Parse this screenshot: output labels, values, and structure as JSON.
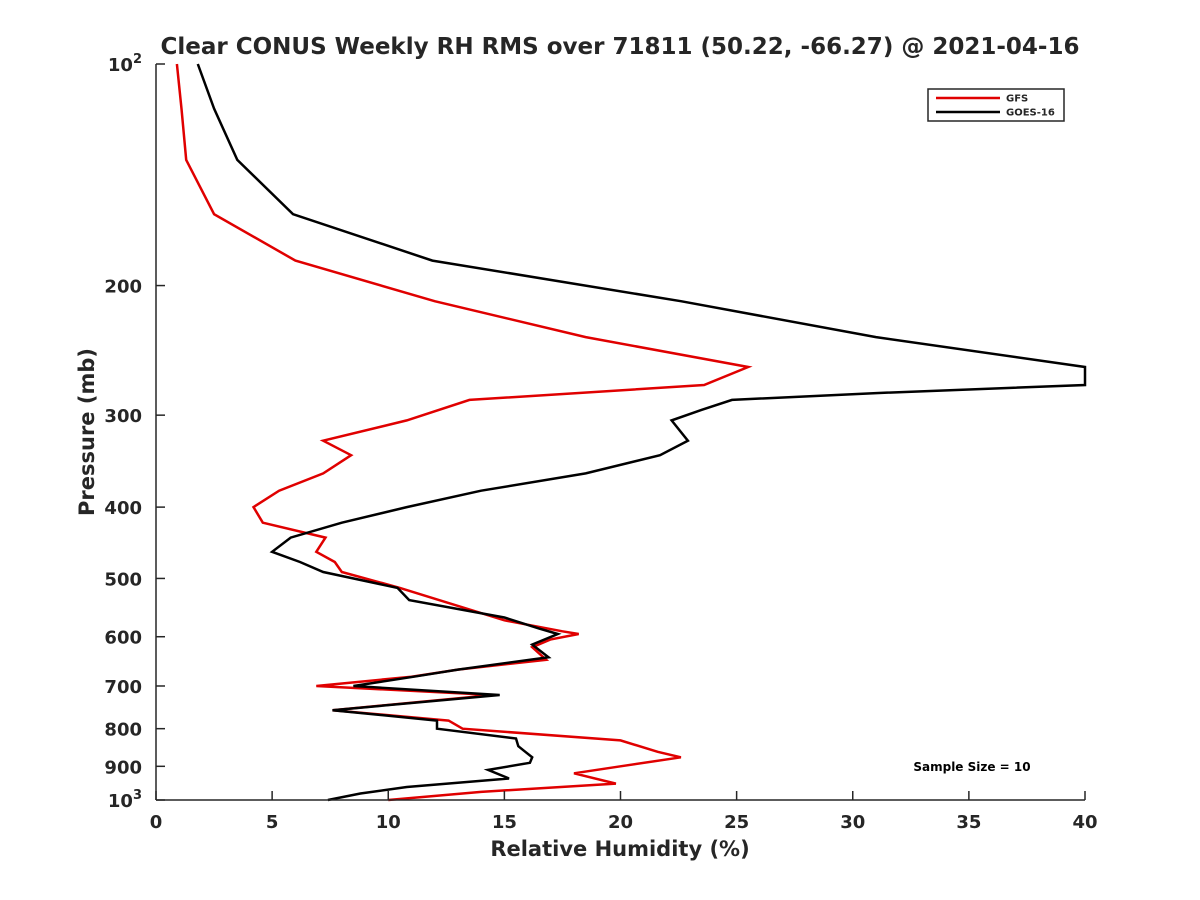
{
  "chart_data": {
    "type": "line",
    "title": "Clear CONUS Weekly RH RMS over 71811 (50.22, -66.27) @ 2021-04-16",
    "xlabel": "Relative Humidity (%)",
    "ylabel": "Pressure (mb)",
    "xlim": [
      0,
      40
    ],
    "ylim": [
      100,
      1000
    ],
    "yscale": "log",
    "y_reversed": true,
    "grid": false,
    "legend_position": "top-right",
    "x_ticks": [
      "0",
      "5",
      "10",
      "15",
      "20",
      "25",
      "30",
      "35",
      "40"
    ],
    "y_ticks": [
      {
        "value": 100,
        "base": "10",
        "exp": "2"
      },
      {
        "value": 200,
        "label": "200"
      },
      {
        "value": 300,
        "label": "300"
      },
      {
        "value": 400,
        "label": "400"
      },
      {
        "value": 500,
        "label": "500"
      },
      {
        "value": 600,
        "label": "600"
      },
      {
        "value": 700,
        "label": "700"
      },
      {
        "value": 800,
        "label": "800"
      },
      {
        "value": 900,
        "label": "900"
      },
      {
        "value": 1000,
        "base": "10",
        "exp": "3"
      }
    ],
    "annotation": "Sample Size = 10",
    "series": [
      {
        "name": "GFS",
        "color": "#e00000",
        "points": [
          [
            0.9,
            100
          ],
          [
            1.1,
            115
          ],
          [
            1.3,
            135
          ],
          [
            2.5,
            160
          ],
          [
            6.0,
            185
          ],
          [
            12.0,
            210
          ],
          [
            18.5,
            235
          ],
          [
            25.5,
            258
          ],
          [
            23.6,
            273
          ],
          [
            13.5,
            286
          ],
          [
            10.8,
            305
          ],
          [
            7.2,
            325
          ],
          [
            8.4,
            340
          ],
          [
            7.2,
            360
          ],
          [
            5.3,
            380
          ],
          [
            4.2,
            400
          ],
          [
            4.6,
            420
          ],
          [
            7.3,
            440
          ],
          [
            6.9,
            460
          ],
          [
            7.7,
            475
          ],
          [
            8.0,
            490
          ],
          [
            10.5,
            515
          ],
          [
            15.0,
            570
          ],
          [
            17.5,
            590
          ],
          [
            18.2,
            595
          ],
          [
            17.0,
            605
          ],
          [
            16.2,
            620
          ],
          [
            16.8,
            645
          ],
          [
            13.0,
            665
          ],
          [
            11.0,
            680
          ],
          [
            6.9,
            700
          ],
          [
            14.5,
            720
          ],
          [
            7.6,
            755
          ],
          [
            12.6,
            780
          ],
          [
            13.2,
            800
          ],
          [
            20.0,
            830
          ],
          [
            21.6,
            860
          ],
          [
            22.6,
            875
          ],
          [
            20.0,
            900
          ],
          [
            18.0,
            920
          ],
          [
            19.8,
            950
          ],
          [
            14.0,
            975
          ],
          [
            10.0,
            1000
          ]
        ]
      },
      {
        "name": "GOES-16",
        "color": "#000000",
        "points": [
          [
            1.8,
            100
          ],
          [
            2.5,
            115
          ],
          [
            3.5,
            135
          ],
          [
            5.9,
            160
          ],
          [
            11.9,
            185
          ],
          [
            22.6,
            210
          ],
          [
            31.0,
            235
          ],
          [
            40.0,
            258
          ],
          [
            40.0,
            273
          ],
          [
            31.0,
            280
          ],
          [
            24.8,
            286
          ],
          [
            23.5,
            295
          ],
          [
            22.2,
            305
          ],
          [
            22.9,
            325
          ],
          [
            21.7,
            340
          ],
          [
            18.5,
            360
          ],
          [
            14.0,
            380
          ],
          [
            10.8,
            400
          ],
          [
            8.0,
            420
          ],
          [
            5.8,
            440
          ],
          [
            5.0,
            460
          ],
          [
            6.2,
            475
          ],
          [
            7.2,
            490
          ],
          [
            10.4,
            515
          ],
          [
            10.9,
            535
          ],
          [
            15.0,
            565
          ],
          [
            16.5,
            585
          ],
          [
            17.3,
            595
          ],
          [
            16.2,
            615
          ],
          [
            16.9,
            640
          ],
          [
            13.0,
            665
          ],
          [
            11.1,
            680
          ],
          [
            8.5,
            700
          ],
          [
            14.8,
            720
          ],
          [
            7.6,
            755
          ],
          [
            12.1,
            780
          ],
          [
            12.1,
            800
          ],
          [
            15.5,
            825
          ],
          [
            15.6,
            845
          ],
          [
            15.9,
            860
          ],
          [
            16.2,
            875
          ],
          [
            16.1,
            890
          ],
          [
            14.3,
            910
          ],
          [
            15.2,
            935
          ],
          [
            10.8,
            960
          ],
          [
            8.8,
            980
          ],
          [
            7.4,
            1000
          ]
        ]
      }
    ]
  }
}
